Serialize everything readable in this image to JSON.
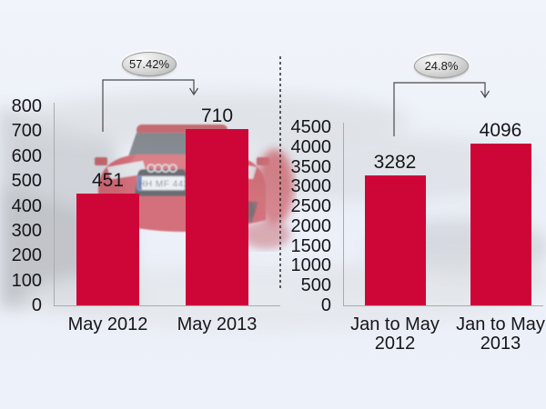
{
  "background": {
    "description": "faded photo of a red sports car on a rocky mountain road",
    "license_plate": "HH MF 442"
  },
  "colors": {
    "bar": "#CE0638",
    "page_background": "#EDF1F9",
    "text": "#15161a",
    "axis_line": "#ABABAB",
    "arrow": "#4a4a4a",
    "divider": "#2b2b2b",
    "bubble_fill": "#d9d9d9",
    "car_red": "#C41F2B"
  },
  "chart_data": [
    {
      "type": "bar",
      "title": "",
      "categories": [
        "May 2012",
        "May 2013"
      ],
      "values": [
        451,
        710
      ],
      "data_labels": [
        "451",
        "710"
      ],
      "change_label": "57.42%",
      "xlabel": "",
      "ylabel": "",
      "ylim": [
        0,
        800
      ],
      "yticks": [
        0,
        100,
        200,
        300,
        400,
        500,
        600,
        700,
        800
      ],
      "grid": "off",
      "legend": "none"
    },
    {
      "type": "bar",
      "title": "",
      "categories": [
        "Jan to May\n2012",
        "Jan to May\n2013"
      ],
      "values": [
        3282,
        4096
      ],
      "data_labels": [
        "3282",
        "4096"
      ],
      "change_label": "24.8%",
      "xlabel": "",
      "ylabel": "",
      "ylim": [
        0,
        4500
      ],
      "yticks": [
        0,
        500,
        1000,
        1500,
        2000,
        2500,
        3000,
        3500,
        4000,
        4500
      ],
      "grid": "off",
      "legend": "none"
    }
  ]
}
